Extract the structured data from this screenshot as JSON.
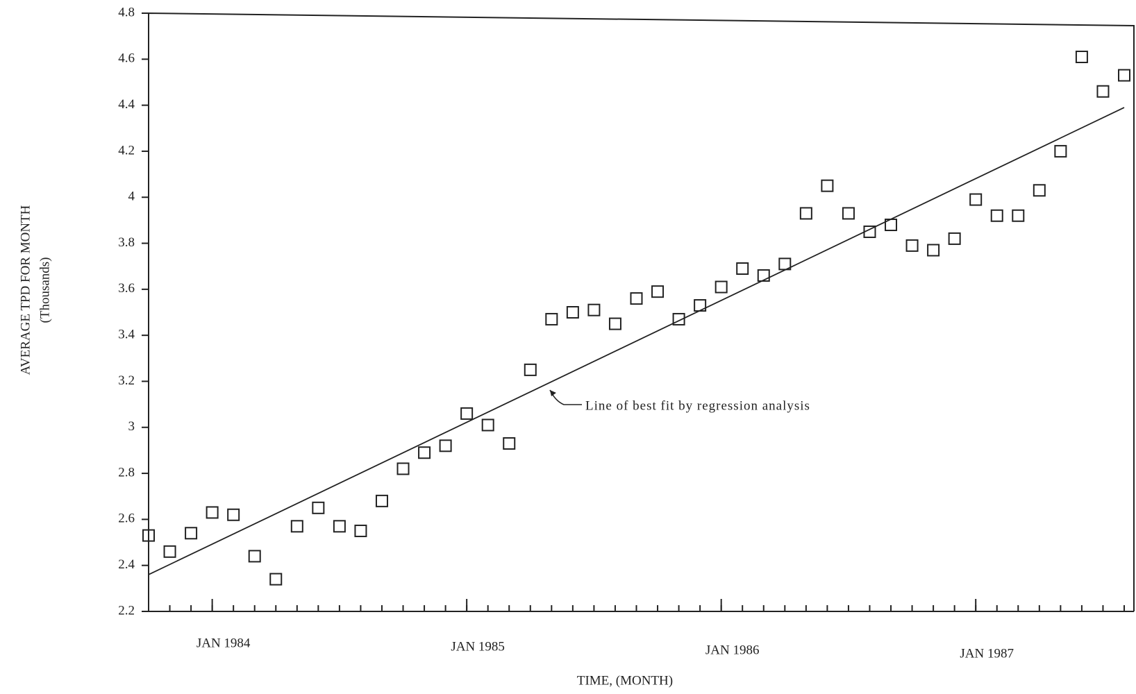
{
  "chart_data": {
    "type": "scatter",
    "xlabel": "TIME, (MONTH)",
    "ylabel": "AVERAGE TPD FOR MONTH",
    "ylabel_unit": "(Thousands)",
    "annotation": "Line of best fit by regression analysis",
    "x": [
      "1983-10",
      "1983-11",
      "1983-12",
      "1984-01",
      "1984-02",
      "1984-03",
      "1984-04",
      "1984-05",
      "1984-06",
      "1984-07",
      "1984-08",
      "1984-09",
      "1984-10",
      "1984-11",
      "1984-12",
      "1985-01",
      "1985-02",
      "1985-03",
      "1985-04",
      "1985-05",
      "1985-06",
      "1985-07",
      "1985-08",
      "1985-09",
      "1985-10",
      "1985-11",
      "1985-12",
      "1986-01",
      "1986-02",
      "1986-03",
      "1986-04",
      "1986-05",
      "1986-06",
      "1986-07",
      "1986-08",
      "1986-09",
      "1986-10",
      "1986-11",
      "1986-12",
      "1987-01",
      "1987-02",
      "1987-03",
      "1987-04",
      "1987-05",
      "1987-06",
      "1987-07",
      "1987-08"
    ],
    "values": [
      2.53,
      2.46,
      2.54,
      2.63,
      2.62,
      2.44,
      2.34,
      2.57,
      2.65,
      2.57,
      2.55,
      2.68,
      2.82,
      2.89,
      2.92,
      3.06,
      3.01,
      2.93,
      3.25,
      3.47,
      3.5,
      3.51,
      3.45,
      3.56,
      3.59,
      3.47,
      3.53,
      3.61,
      3.69,
      3.66,
      3.71,
      3.93,
      4.05,
      3.93,
      3.85,
      3.88,
      3.79,
      3.77,
      3.82,
      3.99,
      3.92,
      3.92,
      4.03,
      4.2,
      4.61,
      4.46,
      4.53
    ],
    "fit_line": {
      "x": [
        "1983-10",
        "1987-08"
      ],
      "values": [
        2.36,
        4.39
      ]
    },
    "xlim": [
      "1983-10",
      "1987-08"
    ],
    "xticks": [
      {
        "value": "1984-01",
        "label": "JAN 1984"
      },
      {
        "value": "1985-01",
        "label": "JAN 1985"
      },
      {
        "value": "1986-01",
        "label": "JAN 1986"
      },
      {
        "value": "1987-01",
        "label": "JAN 1987"
      }
    ],
    "ylim": [
      2.2,
      4.8
    ],
    "yticks": [
      2.2,
      2.4,
      2.6,
      2.8,
      3.0,
      3.2,
      3.4,
      3.6,
      3.8,
      4.0,
      4.2,
      4.4,
      4.6,
      4.8
    ],
    "grid": false,
    "color": "#222222"
  }
}
